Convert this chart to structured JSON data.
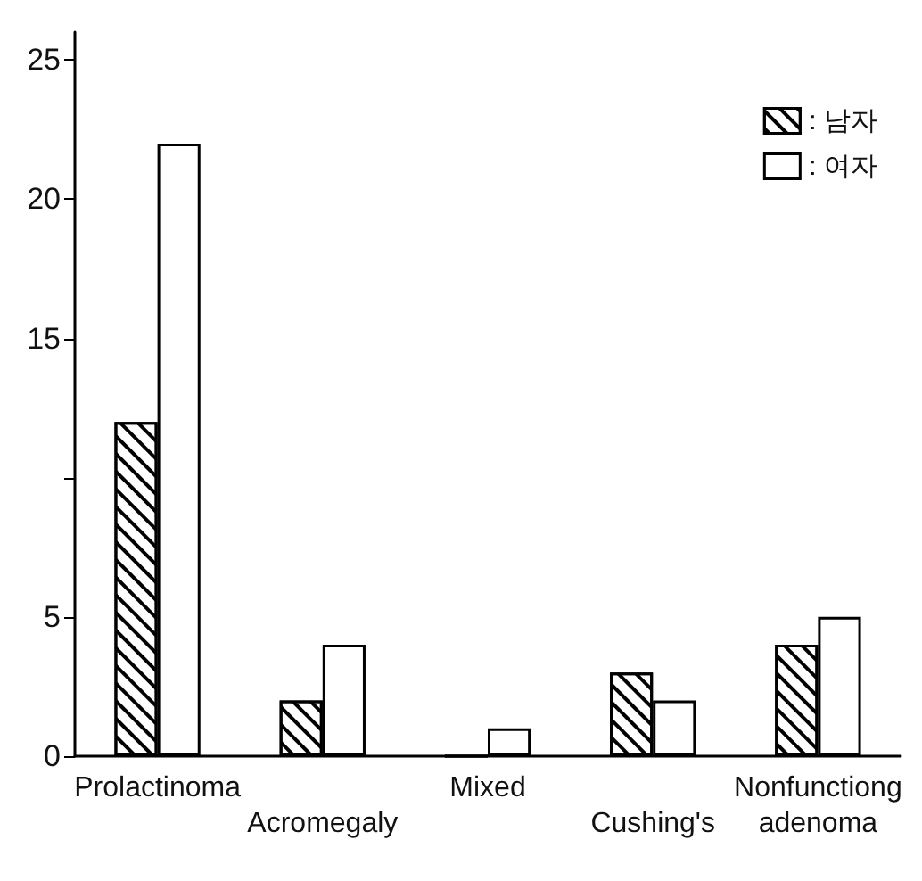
{
  "chart_data": {
    "type": "bar",
    "categories": [
      "Prolactinoma",
      "Acromegaly",
      "Mixed",
      "Cushing's",
      "Nonfunctiong adenoma"
    ],
    "series": [
      {
        "name": ": 남자",
        "color": "#000000",
        "values": [
          12,
          2,
          0,
          3,
          4
        ]
      },
      {
        "name": ": 여자",
        "color": "#ffffff",
        "values": [
          22,
          4,
          1,
          2,
          5
        ]
      }
    ],
    "ylim": [
      0,
      26
    ],
    "yticks": [
      0,
      5,
      {
        "value": 10,
        "label": null
      },
      15,
      20,
      25
    ],
    "grid": false,
    "legend": "top right"
  }
}
